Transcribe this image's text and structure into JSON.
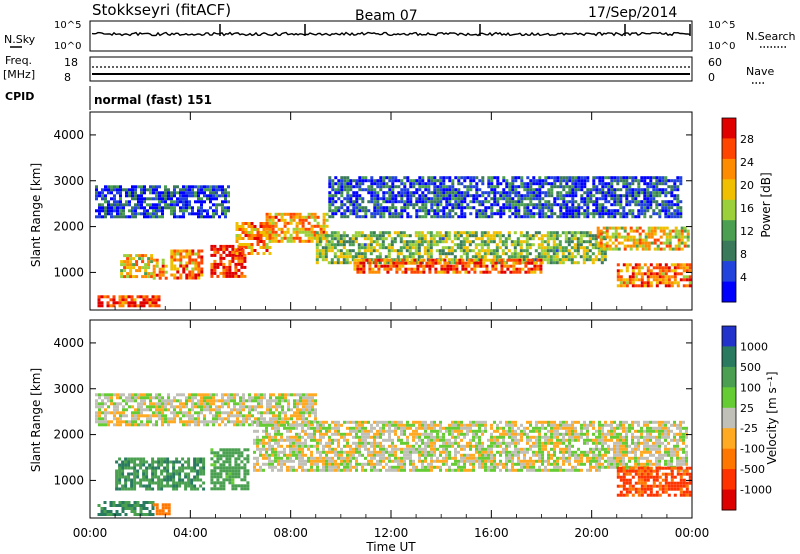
{
  "header": {
    "station": "Stokkseyri (fitACF)",
    "beam": "Beam 07",
    "date": "17/Sep/2014"
  },
  "status_panels": {
    "nsky_label": "N.Sky",
    "nsky_top": "10^5",
    "nsky_bottom": "10^0",
    "nsearch_label": "N.Search",
    "nsearch_top": "10^5",
    "nsearch_bottom": "10^0",
    "freq_label": "Freq.",
    "freq_unit": "[MHz]",
    "freq_top": "18",
    "freq_bottom": "8",
    "nave_label": "Nave",
    "nave_top": "60",
    "nave_bottom": "0",
    "cpid_label": "CPID",
    "cpid_text": "normal (fast) 151"
  },
  "colors": {
    "power_scale": [
      "#0000ff",
      "#2244dd",
      "#3a7a5a",
      "#4aa050",
      "#9bd03a",
      "#f0c000",
      "#ff8c00",
      "#ff4500",
      "#e00000"
    ],
    "velocity_scale": [
      "#2233cc",
      "#2a7a60",
      "#4aa050",
      "#66cc33",
      "#c0c0b8",
      "#ffaa22",
      "#ff7700",
      "#ff3300",
      "#dd0000"
    ]
  },
  "chart_data": [
    {
      "type": "heatmap",
      "name": "power",
      "xlabel": "",
      "ylabel": "Slant Range [km]",
      "ylim": [
        180,
        4500
      ],
      "yticks": [
        "1000",
        "2000",
        "3000",
        "4000"
      ],
      "colorbar_label": "Power [dB]",
      "colorbar_ticks": [
        "4",
        "8",
        "12",
        "16",
        "20",
        "24",
        "28"
      ],
      "regions": [
        {
          "t0": 0.3,
          "t1": 2.8,
          "r0": 250,
          "r1": 500,
          "value": 28
        },
        {
          "t0": 1.2,
          "t1": 2.5,
          "r0": 900,
          "r1": 1400,
          "value": 20
        },
        {
          "t0": 2.5,
          "t1": 3.0,
          "r0": 900,
          "r1": 1300,
          "value": 22
        },
        {
          "t0": 3.2,
          "t1": 4.5,
          "r0": 900,
          "r1": 1500,
          "value": 24
        },
        {
          "t0": 4.8,
          "t1": 6.2,
          "r0": 900,
          "r1": 1600,
          "value": 28
        },
        {
          "t0": 5.8,
          "t1": 7.2,
          "r0": 1400,
          "r1": 2100,
          "value": 24
        },
        {
          "t0": 7.0,
          "t1": 9.5,
          "r0": 1700,
          "r1": 2300,
          "value": 22
        },
        {
          "t0": 9.0,
          "t1": 20.5,
          "r0": 1200,
          "r1": 1900,
          "value": 14
        },
        {
          "t0": 10.5,
          "t1": 18.0,
          "r0": 1000,
          "r1": 1300,
          "value": 26
        },
        {
          "t0": 0.2,
          "t1": 5.5,
          "r0": 2200,
          "r1": 2900,
          "value": 6
        },
        {
          "t0": 9.5,
          "t1": 23.5,
          "r0": 2200,
          "r1": 3100,
          "value": 6
        },
        {
          "t0": 20.2,
          "t1": 23.8,
          "r0": 1500,
          "r1": 2000,
          "value": 20
        },
        {
          "t0": 21.0,
          "t1": 23.9,
          "r0": 700,
          "r1": 1200,
          "value": 24
        }
      ]
    },
    {
      "type": "heatmap",
      "name": "velocity",
      "xlabel": "Time UT",
      "ylabel": "Slant Range [km]",
      "ylim": [
        180,
        4500
      ],
      "yticks": [
        "1000",
        "2000",
        "3000",
        "4000"
      ],
      "xticks": [
        "00:00",
        "04:00",
        "08:00",
        "12:00",
        "16:00",
        "20:00",
        "00:00"
      ],
      "xlim": [
        0,
        24
      ],
      "colorbar_label": "Velocity [m s⁻¹]",
      "colorbar_ticks": [
        "1000",
        "500",
        "100",
        "25",
        "-25",
        "-100",
        "-500",
        "-1000"
      ],
      "regions": [
        {
          "t0": 0.3,
          "t1": 2.5,
          "r0": 250,
          "r1": 550,
          "value": 300
        },
        {
          "t0": 2.5,
          "t1": 3.2,
          "r0": 250,
          "r1": 500,
          "value": -150
        },
        {
          "t0": 1.0,
          "t1": 4.5,
          "r0": 800,
          "r1": 1500,
          "value": 200
        },
        {
          "t0": 4.8,
          "t1": 6.3,
          "r0": 800,
          "r1": 1700,
          "value": 120
        },
        {
          "t0": 0.2,
          "t1": 9.0,
          "r0": 2200,
          "r1": 2900,
          "value": 0
        },
        {
          "t0": 6.5,
          "t1": 23.8,
          "r0": 1200,
          "r1": 2300,
          "value": 0
        },
        {
          "t0": 21.0,
          "t1": 23.9,
          "r0": 700,
          "r1": 1300,
          "value": -300
        }
      ]
    }
  ]
}
